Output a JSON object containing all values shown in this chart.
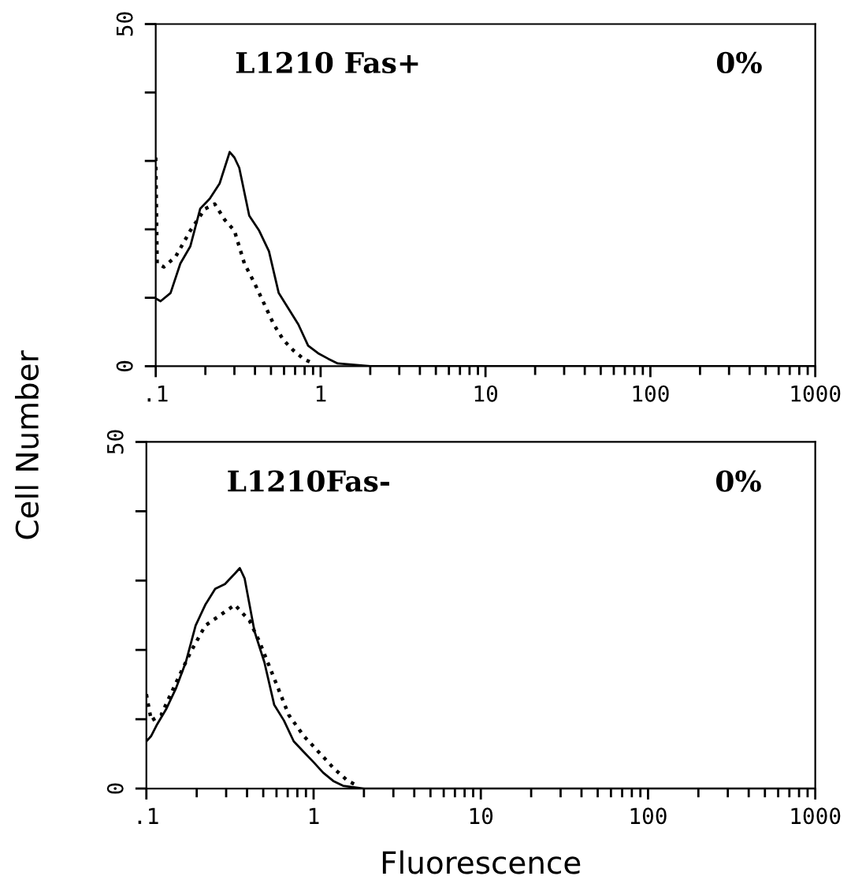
{
  "chart_data": [
    {
      "type": "line",
      "log": "x",
      "xlim": [
        0.1,
        1000
      ],
      "ylim": [
        0,
        50
      ],
      "xticks": [
        {
          "value": 0.1,
          "label": ".1"
        },
        1,
        10,
        100,
        1000
      ],
      "yticks": [
        0,
        {
          "value": 10,
          "label": null
        },
        {
          "value": 20,
          "label": null
        },
        {
          "value": 30,
          "label": null
        },
        {
          "value": 40,
          "label": null
        },
        50
      ],
      "ylabel": "Cell Number",
      "annotations": [
        "L1210 Fas+",
        "0%"
      ],
      "series": [
        {
          "color": "#000000",
          "line_style": "solid",
          "x": [
            0.1,
            0.107,
            0.123,
            0.141,
            0.162,
            0.186,
            0.213,
            0.244,
            0.281,
            0.3,
            0.321,
            0.369,
            0.424,
            0.486,
            0.557,
            0.639,
            0.733,
            0.84,
            0.965,
            1.11,
            1.27,
            2,
            10,
            100,
            1000
          ],
          "values": [
            9.9,
            9.5,
            10.7,
            15,
            17.5,
            23,
            24.5,
            26.7,
            31.3,
            30.5,
            29,
            22,
            19.8,
            16.8,
            10.7,
            8.4,
            6.1,
            3,
            1.9,
            1.1,
            0.4,
            0,
            0,
            0,
            0
          ]
        },
        {
          "color": "#000000",
          "line_style": "dotted",
          "x": [
            0.1,
            0.102,
            0.112,
            0.132,
            0.162,
            0.199,
            0.228,
            0.262,
            0.3,
            0.345,
            0.396,
            0.453,
            0.52,
            0.596,
            0.684,
            0.785,
            0.9
          ],
          "values": [
            30.5,
            15,
            14.5,
            16,
            19.8,
            23,
            23.7,
            21.4,
            19.8,
            15,
            12.2,
            9.2,
            6.1,
            3.8,
            2.3,
            1.1,
            0.4
          ]
        }
      ]
    },
    {
      "type": "line",
      "log": "x",
      "xlim": [
        0.1,
        1000
      ],
      "ylim": [
        0,
        50
      ],
      "xticks": [
        {
          "value": 0.1,
          "label": ".1"
        },
        1,
        10,
        100,
        1000
      ],
      "yticks": [
        0,
        {
          "value": 10,
          "label": null
        },
        {
          "value": 20,
          "label": null
        },
        {
          "value": 30,
          "label": null
        },
        {
          "value": 40,
          "label": null
        },
        50
      ],
      "xlabel": "Fluorescence",
      "annotations": [
        "L1210Fas-",
        "0%"
      ],
      "series": [
        {
          "color": "#000000",
          "line_style": "solid",
          "x": [
            0.1,
            0.107,
            0.115,
            0.131,
            0.15,
            0.172,
            0.197,
            0.225,
            0.258,
            0.295,
            0.338,
            0.362,
            0.387,
            0.443,
            0.508,
            0.581,
            0.665,
            0.761,
            0.872,
            1,
            1.14,
            1.31,
            1.5,
            2,
            10,
            100,
            1000
          ],
          "values": [
            6.8,
            7.6,
            9.1,
            11.4,
            14.4,
            18.2,
            23.5,
            26.5,
            28.8,
            29.5,
            31,
            31.8,
            30.3,
            22.7,
            18.2,
            12.1,
            9.8,
            6.8,
            5.3,
            3.8,
            2.3,
            1.1,
            0.4,
            0,
            0,
            0,
            0
          ]
        },
        {
          "color": "#000000",
          "line_style": "dotted",
          "x": [
            0.1,
            0.107,
            0.1225,
            0.15,
            0.184,
            0.225,
            0.276,
            0.338,
            0.414,
            0.474,
            0.581,
            0.711,
            0.872,
            1.07,
            1.31,
            1.6,
            1.84
          ],
          "values": [
            13.6,
            9.8,
            10.6,
            15.2,
            19.7,
            23.5,
            25,
            26.5,
            24.2,
            21.2,
            15.9,
            10.6,
            7.6,
            5.3,
            3,
            1.1,
            0.4
          ]
        }
      ]
    }
  ]
}
